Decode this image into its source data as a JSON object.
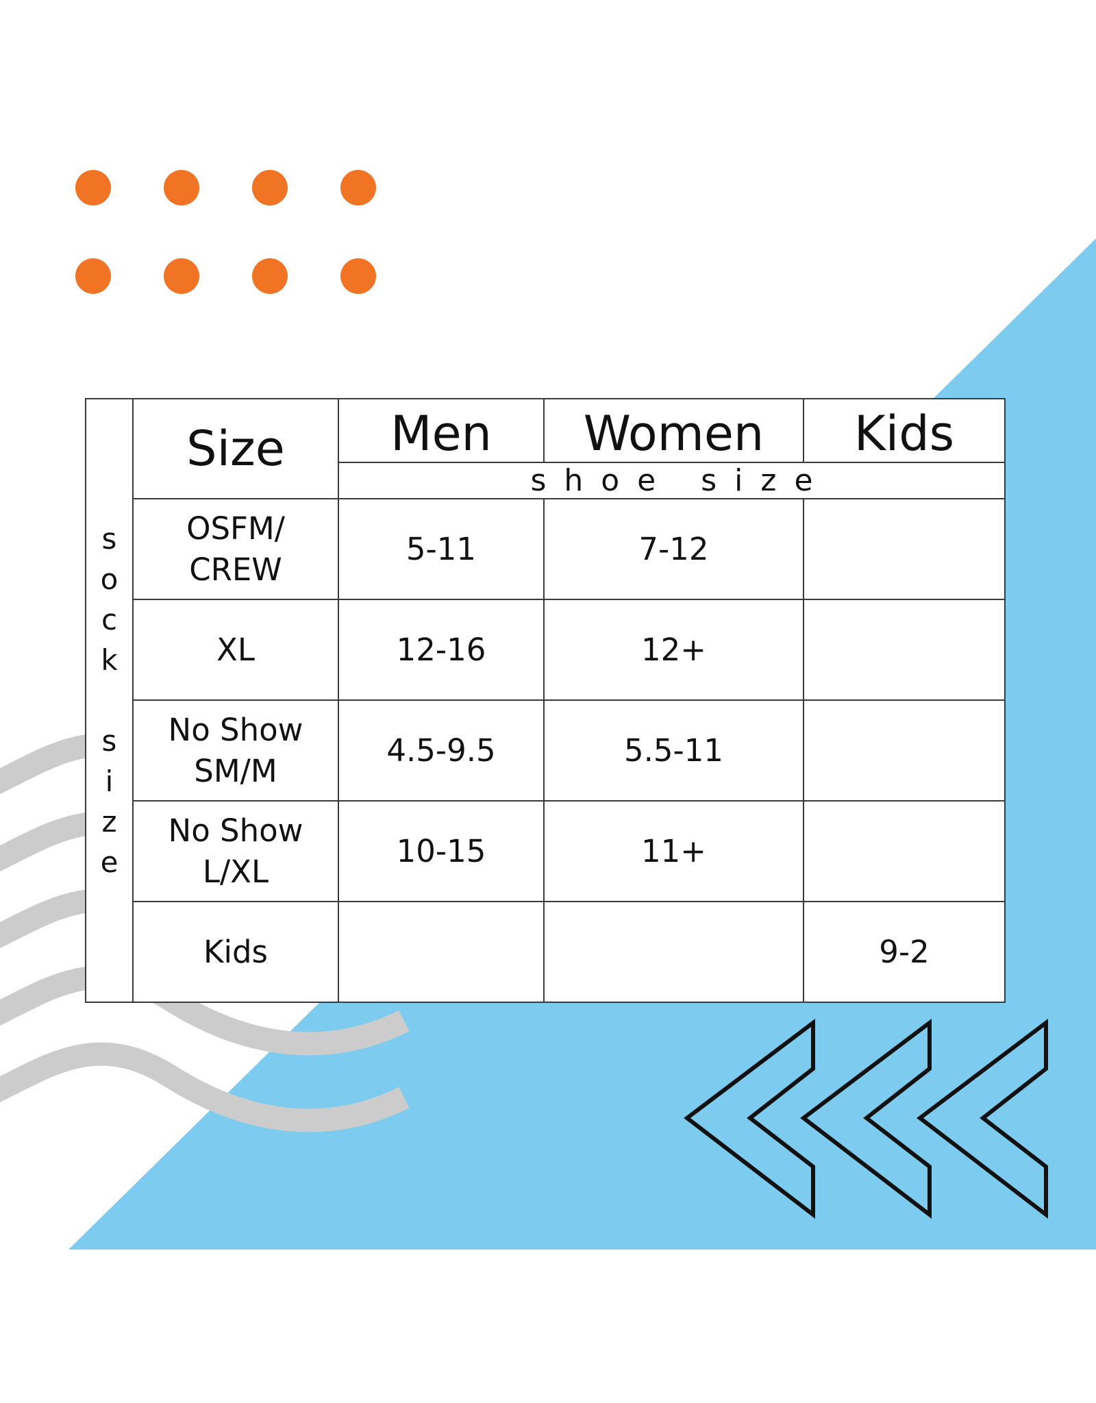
{
  "colors": {
    "accent_dots": "#f07424",
    "background_shape": "#7ecbf0",
    "wave_lines": "#cccccc",
    "chevron_outlines": "#111111",
    "table_border": "#3a3a3a"
  },
  "decorations": {
    "dot_icon": "circle-icon",
    "chevron_icon": "double-chevron-left-icon",
    "wave_icon": "wave-line-icon"
  },
  "table": {
    "side_label": "sock size",
    "size_header": "Size",
    "group_headers": [
      "Men",
      "Women",
      "Kids"
    ],
    "subheader": "shoe size",
    "rows": [
      {
        "size": "OSFM/ CREW",
        "men": "5-11",
        "women": "7-12",
        "kids": ""
      },
      {
        "size": "XL",
        "men": "12-16",
        "women": "12+",
        "kids": ""
      },
      {
        "size": "No Show SM/M",
        "men": "4.5-9.5",
        "women": "5.5-11",
        "kids": ""
      },
      {
        "size": "No Show L/XL",
        "men": "10-15",
        "women": "11+",
        "kids": ""
      },
      {
        "size": "Kids",
        "men": "",
        "women": "",
        "kids": "9-2"
      }
    ]
  }
}
